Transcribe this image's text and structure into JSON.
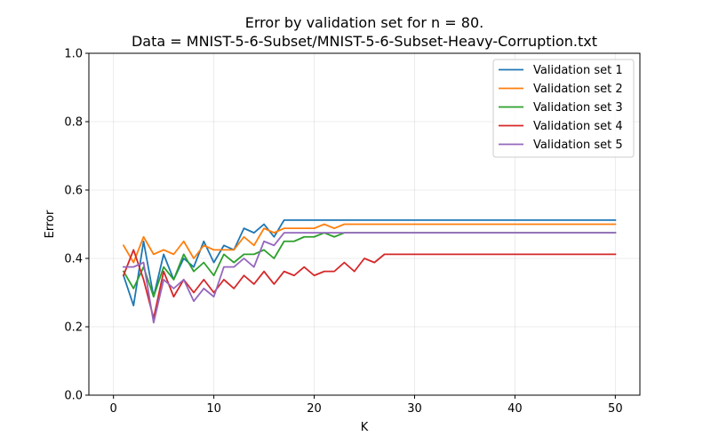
{
  "chart_data": {
    "type": "line",
    "title": "Error by validation set for n = 80.",
    "subtitle": "Data = MNIST-5-6-Subset/MNIST-5-6-Subset-Heavy-Corruption.txt",
    "xlabel": "K",
    "ylabel": "Error",
    "xlim": [
      -2.45,
      52.45
    ],
    "ylim": [
      0.0,
      1.0
    ],
    "xticks": [
      0,
      10,
      20,
      30,
      40,
      50
    ],
    "yticks": [
      0.0,
      0.2,
      0.4,
      0.6,
      0.8,
      1.0
    ],
    "xtick_labels": [
      "0",
      "10",
      "20",
      "30",
      "40",
      "50"
    ],
    "ytick_labels": [
      "0.0",
      "0.2",
      "0.4",
      "0.6",
      "0.8",
      "1.0"
    ],
    "grid": true,
    "legend_position": "upper-right",
    "x": [
      1,
      2,
      3,
      4,
      5,
      6,
      7,
      8,
      9,
      10,
      11,
      12,
      13,
      14,
      15,
      16,
      17,
      18,
      19,
      20,
      21,
      22,
      23,
      24,
      25,
      26,
      27,
      28,
      29,
      30,
      31,
      32,
      33,
      34,
      35,
      36,
      37,
      38,
      39,
      40,
      41,
      42,
      43,
      44,
      45,
      46,
      47,
      48,
      49,
      50
    ],
    "series": [
      {
        "name": "Validation set 1",
        "color": "#1f77b4",
        "values": [
          0.35,
          0.262,
          0.45,
          0.288,
          0.412,
          0.338,
          0.4,
          0.375,
          0.45,
          0.388,
          0.438,
          0.425,
          0.488,
          0.475,
          0.5,
          0.463,
          0.512,
          0.512,
          0.512,
          0.512,
          0.512,
          0.512,
          0.512,
          0.512,
          0.512,
          0.512,
          0.512,
          0.512,
          0.512,
          0.512,
          0.512,
          0.512,
          0.512,
          0.512,
          0.512,
          0.512,
          0.512,
          0.512,
          0.512,
          0.512,
          0.512,
          0.512,
          0.512,
          0.512,
          0.512,
          0.512,
          0.512,
          0.512,
          0.512,
          0.512
        ]
      },
      {
        "name": "Validation set 2",
        "color": "#ff7f0e",
        "values": [
          0.438,
          0.388,
          0.463,
          0.412,
          0.425,
          0.412,
          0.45,
          0.4,
          0.438,
          0.425,
          0.425,
          0.425,
          0.463,
          0.438,
          0.488,
          0.475,
          0.488,
          0.488,
          0.488,
          0.488,
          0.5,
          0.488,
          0.5,
          0.5,
          0.5,
          0.5,
          0.5,
          0.5,
          0.5,
          0.5,
          0.5,
          0.5,
          0.5,
          0.5,
          0.5,
          0.5,
          0.5,
          0.5,
          0.5,
          0.5,
          0.5,
          0.5,
          0.5,
          0.5,
          0.5,
          0.5,
          0.5,
          0.5,
          0.5,
          0.5
        ]
      },
      {
        "name": "Validation set 3",
        "color": "#2ca02c",
        "values": [
          0.362,
          0.312,
          0.375,
          0.288,
          0.375,
          0.338,
          0.412,
          0.362,
          0.388,
          0.35,
          0.412,
          0.388,
          0.412,
          0.412,
          0.425,
          0.4,
          0.45,
          0.45,
          0.463,
          0.463,
          0.475,
          0.463,
          0.475,
          0.475,
          0.475,
          0.475,
          0.475,
          0.475,
          0.475,
          0.475,
          0.475,
          0.475,
          0.475,
          0.475,
          0.475,
          0.475,
          0.475,
          0.475,
          0.475,
          0.475,
          0.475,
          0.475,
          0.475,
          0.475,
          0.475,
          0.475,
          0.475,
          0.475,
          0.475,
          0.475
        ]
      },
      {
        "name": "Validation set 4",
        "color": "#d62728",
        "values": [
          0.35,
          0.425,
          0.338,
          0.225,
          0.362,
          0.288,
          0.338,
          0.3,
          0.338,
          0.3,
          0.338,
          0.312,
          0.35,
          0.325,
          0.362,
          0.325,
          0.362,
          0.35,
          0.375,
          0.35,
          0.362,
          0.362,
          0.388,
          0.362,
          0.4,
          0.388,
          0.412,
          0.412,
          0.412,
          0.412,
          0.412,
          0.412,
          0.412,
          0.412,
          0.412,
          0.412,
          0.412,
          0.412,
          0.412,
          0.412,
          0.412,
          0.412,
          0.412,
          0.412,
          0.412,
          0.412,
          0.412,
          0.412,
          0.412,
          0.412
        ]
      },
      {
        "name": "Validation set 5",
        "color": "#9467bd",
        "values": [
          0.375,
          0.375,
          0.388,
          0.212,
          0.338,
          0.312,
          0.338,
          0.275,
          0.312,
          0.288,
          0.375,
          0.375,
          0.4,
          0.375,
          0.45,
          0.438,
          0.475,
          0.475,
          0.475,
          0.475,
          0.475,
          0.475,
          0.475,
          0.475,
          0.475,
          0.475,
          0.475,
          0.475,
          0.475,
          0.475,
          0.475,
          0.475,
          0.475,
          0.475,
          0.475,
          0.475,
          0.475,
          0.475,
          0.475,
          0.475,
          0.475,
          0.475,
          0.475,
          0.475,
          0.475,
          0.475,
          0.475,
          0.475,
          0.475,
          0.475
        ]
      }
    ]
  }
}
